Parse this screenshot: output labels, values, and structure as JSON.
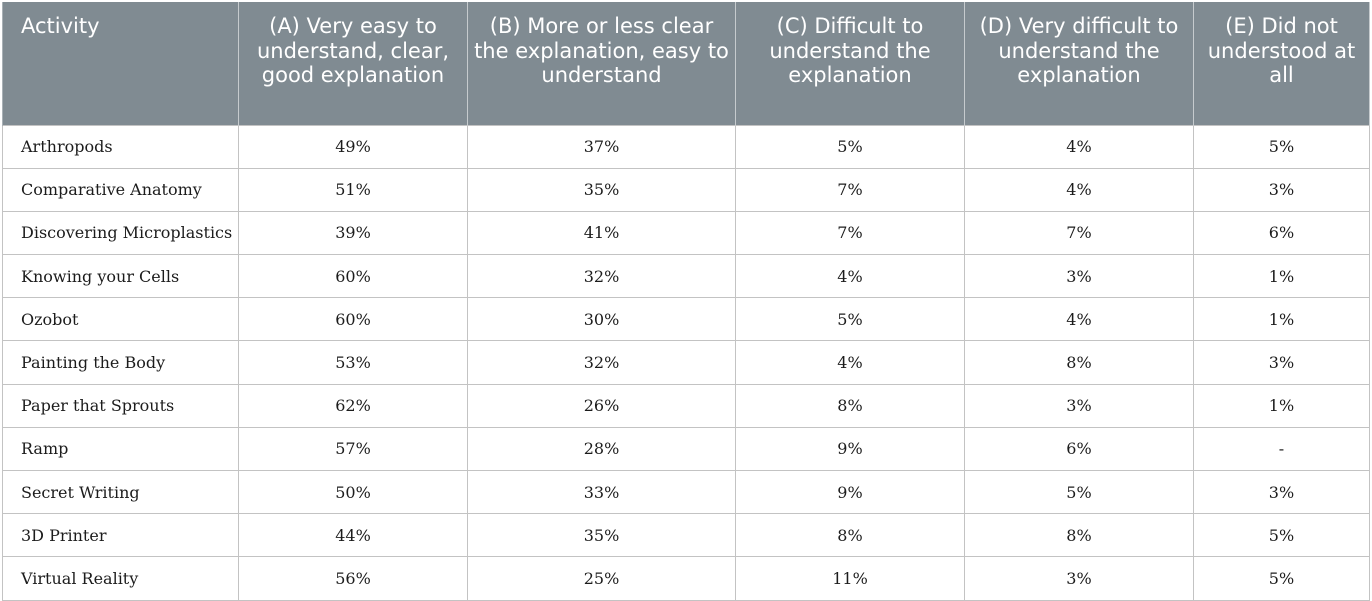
{
  "headers": [
    "Activity",
    "(A) Very easy to understand, clear, good explanation",
    "(B) More or less clear the explanation, easy to understand",
    "(C) Difficult to understand the explanation",
    "(D) Very difficult to understand the explanation",
    "(E) Did not understood at all"
  ],
  "rows": [
    [
      "Arthropods",
      "49%",
      "37%",
      "5%",
      "4%",
      "5%"
    ],
    [
      "Comparative Anatomy",
      "51%",
      "35%",
      "7%",
      "4%",
      "3%"
    ],
    [
      "Discovering Microplastics",
      "39%",
      "41%",
      "7%",
      "7%",
      "6%"
    ],
    [
      "Knowing your Cells",
      "60%",
      "32%",
      "4%",
      "3%",
      "1%"
    ],
    [
      "Ozobot",
      "60%",
      "30%",
      "5%",
      "4%",
      "1%"
    ],
    [
      "Painting the Body",
      "53%",
      "32%",
      "4%",
      "8%",
      "3%"
    ],
    [
      "Paper that Sprouts",
      "62%",
      "26%",
      "8%",
      "3%",
      "1%"
    ],
    [
      "Ramp",
      "57%",
      "28%",
      "9%",
      "6%",
      "-"
    ],
    [
      "Secret Writing",
      "50%",
      "33%",
      "9%",
      "5%",
      "3%"
    ],
    [
      "3D Printer",
      "44%",
      "35%",
      "8%",
      "8%",
      "5%"
    ],
    [
      "Virtual Reality",
      "56%",
      "25%",
      "11%",
      "3%",
      "5%"
    ]
  ],
  "colors": {
    "header_bg": "#808b92",
    "header_text": "#ffffff",
    "border": "#c3c3c3"
  }
}
